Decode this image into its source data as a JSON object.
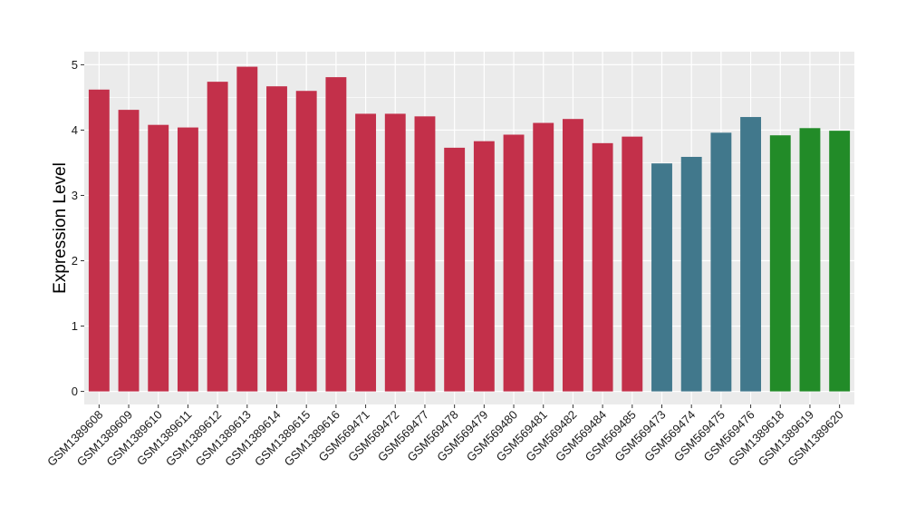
{
  "chart_data": {
    "type": "bar",
    "title": "",
    "xlabel": "",
    "ylabel": "Expression Level",
    "ylim": [
      -0.2,
      5.2
    ],
    "yticks": [
      0,
      1,
      2,
      3,
      4,
      5
    ],
    "grid": true,
    "legend": "none",
    "categories": [
      "GSM1389608",
      "GSM1389609",
      "GSM1389610",
      "GSM1389611",
      "GSM1389612",
      "GSM1389613",
      "GSM1389614",
      "GSM1389615",
      "GSM1389616",
      "GSM569471",
      "GSM569472",
      "GSM569477",
      "GSM569478",
      "GSM569479",
      "GSM569480",
      "GSM569481",
      "GSM569482",
      "GSM569484",
      "GSM569485",
      "GSM569473",
      "GSM569474",
      "GSM569475",
      "GSM569476",
      "GSM1389618",
      "GSM1389619",
      "GSM1389620"
    ],
    "values": [
      4.62,
      4.31,
      4.08,
      4.04,
      4.74,
      4.97,
      4.67,
      4.6,
      4.81,
      4.25,
      4.25,
      4.21,
      3.73,
      3.83,
      3.93,
      4.11,
      4.17,
      3.8,
      3.9,
      3.49,
      3.59,
      3.96,
      4.2,
      3.92,
      4.03,
      3.99
    ],
    "groups": [
      0,
      0,
      0,
      0,
      0,
      0,
      0,
      0,
      0,
      0,
      0,
      0,
      0,
      0,
      0,
      0,
      0,
      0,
      0,
      1,
      1,
      1,
      1,
      2,
      2,
      2
    ],
    "group_colors": [
      "#c3304a",
      "#41788c",
      "#228b28"
    ]
  },
  "style": {
    "panel_bg": "#ebebeb",
    "grid_color": "#ffffff"
  }
}
